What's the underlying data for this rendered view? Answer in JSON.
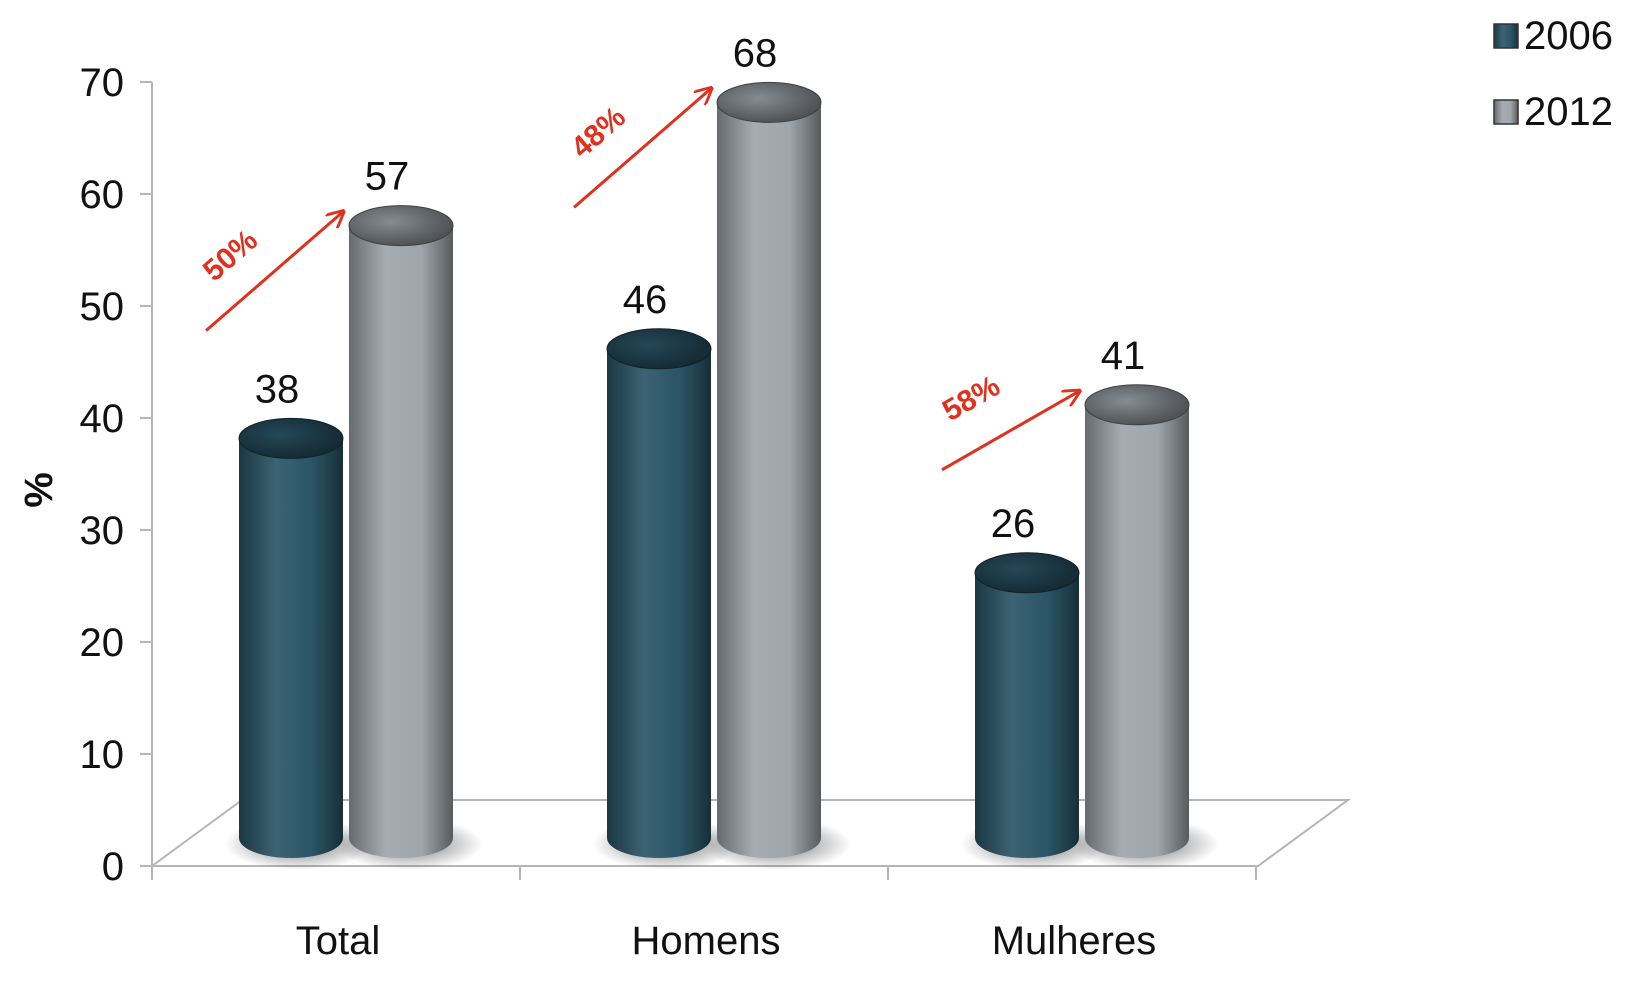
{
  "chart_data": {
    "type": "bar",
    "style": "3d-cylinder",
    "categories": [
      "Total",
      "Homens",
      "Mulheres"
    ],
    "series": [
      {
        "name": "2006",
        "values": [
          38,
          46,
          26
        ],
        "color": "#2a5567"
      },
      {
        "name": "2012",
        "values": [
          57,
          68,
          41
        ],
        "color": "#9ea5ab"
      }
    ],
    "value_labels": [
      [
        "38",
        "46",
        "26"
      ],
      [
        "57",
        "68",
        "41"
      ]
    ],
    "ylabel": "%",
    "xlabel": "",
    "ylim": [
      0,
      70
    ],
    "yticks": [
      "0",
      "10",
      "20",
      "30",
      "40",
      "50",
      "60",
      "70"
    ],
    "grid": false,
    "legend": {
      "position": "top-right"
    },
    "annotations": [
      {
        "category": "Total",
        "text": "50%"
      },
      {
        "category": "Homens",
        "text": "48%"
      },
      {
        "category": "Mulheres",
        "text": "58%"
      }
    ],
    "annotation_color": "#e0301e",
    "axis_color": "#b5b5b5"
  }
}
